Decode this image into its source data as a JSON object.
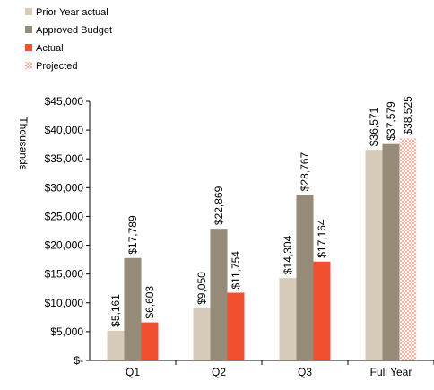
{
  "chart_data": {
    "type": "bar",
    "y_axis_label": "Thousands",
    "categories": [
      "Q1",
      "Q2",
      "Q3",
      "Full Year"
    ],
    "series": [
      {
        "name": "Prior Year actual",
        "color": "#d6cbb8",
        "values": [
          5161,
          9050,
          14304,
          36571
        ],
        "value_labels": [
          "$5,161",
          "$9,050",
          "$14,304",
          "$36,571"
        ]
      },
      {
        "name": "Approved Budget",
        "color": "#968a78",
        "values": [
          17789,
          22869,
          28767,
          37579
        ],
        "value_labels": [
          "$17,789",
          "$22,869",
          "$28,767",
          "$37,579"
        ]
      },
      {
        "name": "Actual",
        "color": "#f0502f",
        "values": [
          6603,
          11754,
          17164,
          null
        ],
        "value_labels": [
          "$6,603",
          "$11,754",
          "$17,164",
          null
        ]
      },
      {
        "name": "Projected",
        "color": "#f0502f",
        "pattern": "dotted",
        "values": [
          null,
          null,
          null,
          38525
        ],
        "value_labels": [
          null,
          null,
          null,
          "$38,525"
        ]
      }
    ],
    "ylim": [
      0,
      45000
    ],
    "yticks": [
      {
        "value": 0,
        "label": "$-"
      },
      {
        "value": 5000,
        "label": "$5,000"
      },
      {
        "value": 10000,
        "label": "$10,000"
      },
      {
        "value": 15000,
        "label": "$15,000"
      },
      {
        "value": 20000,
        "label": "$20,000"
      },
      {
        "value": 25000,
        "label": "$25,000"
      },
      {
        "value": 30000,
        "label": "$30,000"
      },
      {
        "value": 35000,
        "label": "$35,000"
      },
      {
        "value": 40000,
        "label": "$40,000"
      },
      {
        "value": 45000,
        "label": "$45,000"
      }
    ],
    "legend": "top-left",
    "grid": false
  }
}
